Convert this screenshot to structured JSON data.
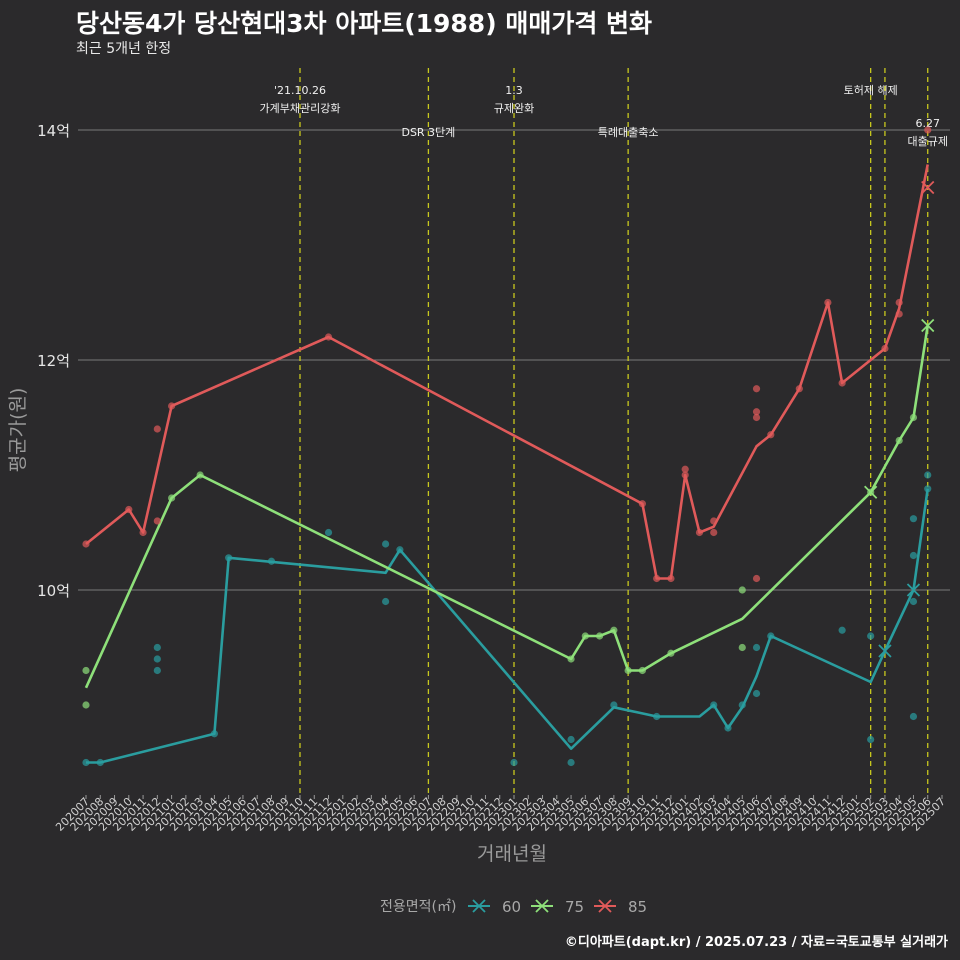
{
  "header": {
    "title": "당산동4가 당산현대3차 아파트(1988) 매매가격 변화",
    "subtitle": "최근 5개년 한정"
  },
  "caption": "©디아파트(dapt.kr) / 2025.07.23 / 자료=국토교통부 실거래가",
  "colors": {
    "background": "#2b2a2c",
    "grid": "#7a7a7a",
    "event_line": "#c8c81e",
    "series_60": "#2a9d9f",
    "series_75": "#8ee07a",
    "series_85": "#e05a5a"
  },
  "chart_data": {
    "type": "line",
    "x_categories": [
      "202007",
      "202008",
      "202009",
      "202010",
      "202011",
      "202012",
      "202101",
      "202102",
      "202103",
      "202104",
      "202105",
      "202106",
      "202107",
      "202108",
      "202109",
      "202110",
      "202111",
      "202112",
      "202201",
      "202202",
      "202203",
      "202204",
      "202205",
      "202206",
      "202207",
      "202208",
      "202209",
      "202210",
      "202211",
      "202212",
      "202301",
      "202302",
      "202303",
      "202304",
      "202305",
      "202306",
      "202307",
      "202308",
      "202309",
      "202310",
      "202311",
      "202312",
      "202401",
      "202402",
      "202403",
      "202404",
      "202405",
      "202406",
      "202407",
      "202408",
      "202409",
      "202410",
      "202411",
      "202412",
      "202501",
      "202502",
      "202503",
      "202504",
      "202505",
      "202506",
      "202507"
    ],
    "xlabel": "거래년월",
    "ylabel": "평균가(원)",
    "y_unit": "억",
    "ylim": [
      8.3,
      14.6
    ],
    "y_ticks": [
      10,
      12,
      14
    ],
    "y_tick_labels": [
      "10억",
      "12억",
      "14억"
    ],
    "legend_title": "전용면적(㎡)",
    "legend_position": "bottom",
    "events": [
      {
        "month": "202110",
        "lines": [
          "'21.10.26",
          "가계부채관리강화"
        ],
        "level": 1
      },
      {
        "month": "202207",
        "lines": [
          "DSR 3단계"
        ],
        "level": 2
      },
      {
        "month": "202301",
        "lines": [
          "1.3",
          "규제완화"
        ],
        "level": 1
      },
      {
        "month": "202309",
        "lines": [
          "특례대출축소"
        ],
        "level": 2
      },
      {
        "month": "202502",
        "lines": [
          "토허제 해제"
        ],
        "level": 1
      },
      {
        "month": "202503",
        "lines": [],
        "level": 1
      },
      {
        "month": "202506",
        "lines": [
          "6.27",
          "대출규제"
        ],
        "level": 3
      }
    ],
    "series": [
      {
        "name": "60",
        "color": "#2a9d9f",
        "line": [
          {
            "x": "202007",
            "y": 8.5
          },
          {
            "x": "202008",
            "y": 8.5
          },
          {
            "x": "202104",
            "y": 8.75
          },
          {
            "x": "202105",
            "y": 10.28
          },
          {
            "x": "202204",
            "y": 10.15
          },
          {
            "x": "202205",
            "y": 10.35
          },
          {
            "x": "202305",
            "y": 8.62
          },
          {
            "x": "202308",
            "y": 8.98
          },
          {
            "x": "202311",
            "y": 8.9
          },
          {
            "x": "202402",
            "y": 8.9
          },
          {
            "x": "202403",
            "y": 9.0
          },
          {
            "x": "202404",
            "y": 8.8
          },
          {
            "x": "202405",
            "y": 8.98
          },
          {
            "x": "202406",
            "y": 9.25
          },
          {
            "x": "202407",
            "y": 9.6
          },
          {
            "x": "202502",
            "y": 9.2
          },
          {
            "x": "202503",
            "y": 9.47
          },
          {
            "x": "202505",
            "y": 10.0
          },
          {
            "x": "202506",
            "y": 10.88
          }
        ],
        "points": [
          {
            "x": "202007",
            "y": 8.5
          },
          {
            "x": "202008",
            "y": 8.5
          },
          {
            "x": "202012",
            "y": 9.5
          },
          {
            "x": "202012",
            "y": 9.4
          },
          {
            "x": "202012",
            "y": 9.3
          },
          {
            "x": "202104",
            "y": 8.75
          },
          {
            "x": "202105",
            "y": 10.28
          },
          {
            "x": "202108",
            "y": 10.25
          },
          {
            "x": "202112",
            "y": 10.5
          },
          {
            "x": "202204",
            "y": 10.4
          },
          {
            "x": "202204",
            "y": 9.9
          },
          {
            "x": "202205",
            "y": 10.35
          },
          {
            "x": "202301",
            "y": 8.5
          },
          {
            "x": "202305",
            "y": 8.7
          },
          {
            "x": "202305",
            "y": 8.5
          },
          {
            "x": "202308",
            "y": 9.0
          },
          {
            "x": "202311",
            "y": 8.9
          },
          {
            "x": "202403",
            "y": 9.0
          },
          {
            "x": "202404",
            "y": 8.8
          },
          {
            "x": "202405",
            "y": 9.0
          },
          {
            "x": "202406",
            "y": 9.1
          },
          {
            "x": "202406",
            "y": 9.5
          },
          {
            "x": "202407",
            "y": 9.6
          },
          {
            "x": "202412",
            "y": 9.65
          },
          {
            "x": "202502",
            "y": 9.6
          },
          {
            "x": "202502",
            "y": 8.7
          },
          {
            "x": "202505",
            "y": 10.62
          },
          {
            "x": "202505",
            "y": 10.3
          },
          {
            "x": "202505",
            "y": 9.9
          },
          {
            "x": "202505",
            "y": 8.9
          },
          {
            "x": "202506",
            "y": 11.0
          },
          {
            "x": "202506",
            "y": 10.88
          }
        ],
        "x_marks": [
          {
            "x": "202503",
            "y": 9.47
          },
          {
            "x": "202505",
            "y": 10.0
          }
        ]
      },
      {
        "name": "75",
        "color": "#8ee07a",
        "line": [
          {
            "x": "202007",
            "y": 9.15
          },
          {
            "x": "202101",
            "y": 10.8
          },
          {
            "x": "202103",
            "y": 11.0
          },
          {
            "x": "202305",
            "y": 9.4
          },
          {
            "x": "202306",
            "y": 9.6
          },
          {
            "x": "202307",
            "y": 9.6
          },
          {
            "x": "202308",
            "y": 9.65
          },
          {
            "x": "202309",
            "y": 9.3
          },
          {
            "x": "202310",
            "y": 9.3
          },
          {
            "x": "202312",
            "y": 9.45
          },
          {
            "x": "202405",
            "y": 9.75
          },
          {
            "x": "202502",
            "y": 10.85
          },
          {
            "x": "202504",
            "y": 11.3
          },
          {
            "x": "202505",
            "y": 11.5
          },
          {
            "x": "202506",
            "y": 12.3
          }
        ],
        "points": [
          {
            "x": "202007",
            "y": 9.3
          },
          {
            "x": "202007",
            "y": 9.0
          },
          {
            "x": "202101",
            "y": 10.8
          },
          {
            "x": "202103",
            "y": 11.0
          },
          {
            "x": "202305",
            "y": 9.4
          },
          {
            "x": "202306",
            "y": 9.6
          },
          {
            "x": "202307",
            "y": 9.6
          },
          {
            "x": "202308",
            "y": 9.65
          },
          {
            "x": "202309",
            "y": 9.3
          },
          {
            "x": "202310",
            "y": 9.3
          },
          {
            "x": "202312",
            "y": 9.45
          },
          {
            "x": "202405",
            "y": 10.0
          },
          {
            "x": "202405",
            "y": 9.5
          },
          {
            "x": "202502",
            "y": 10.85
          },
          {
            "x": "202504",
            "y": 11.3
          },
          {
            "x": "202505",
            "y": 11.5
          }
        ],
        "x_marks": [
          {
            "x": "202502",
            "y": 10.85
          },
          {
            "x": "202506",
            "y": 12.3
          }
        ]
      },
      {
        "name": "85",
        "color": "#e05a5a",
        "line": [
          {
            "x": "202007",
            "y": 10.4
          },
          {
            "x": "202010",
            "y": 10.7
          },
          {
            "x": "202011",
            "y": 10.5
          },
          {
            "x": "202101",
            "y": 11.6
          },
          {
            "x": "202112",
            "y": 12.2
          },
          {
            "x": "202310",
            "y": 10.75
          },
          {
            "x": "202311",
            "y": 10.1
          },
          {
            "x": "202312",
            "y": 10.1
          },
          {
            "x": "202401",
            "y": 11.0
          },
          {
            "x": "202402",
            "y": 10.5
          },
          {
            "x": "202403",
            "y": 10.55
          },
          {
            "x": "202406",
            "y": 11.25
          },
          {
            "x": "202407",
            "y": 11.35
          },
          {
            "x": "202409",
            "y": 11.75
          },
          {
            "x": "202411",
            "y": 12.5
          },
          {
            "x": "202412",
            "y": 11.8
          },
          {
            "x": "202503",
            "y": 12.1
          },
          {
            "x": "202504",
            "y": 12.45
          },
          {
            "x": "202506",
            "y": 13.7
          }
        ],
        "points": [
          {
            "x": "202007",
            "y": 10.4
          },
          {
            "x": "202010",
            "y": 10.7
          },
          {
            "x": "202011",
            "y": 10.5
          },
          {
            "x": "202012",
            "y": 11.4
          },
          {
            "x": "202012",
            "y": 10.6
          },
          {
            "x": "202101",
            "y": 11.6
          },
          {
            "x": "202112",
            "y": 12.2
          },
          {
            "x": "202310",
            "y": 10.75
          },
          {
            "x": "202311",
            "y": 10.1
          },
          {
            "x": "202312",
            "y": 10.1
          },
          {
            "x": "202401",
            "y": 11.05
          },
          {
            "x": "202401",
            "y": 11.0
          },
          {
            "x": "202402",
            "y": 10.5
          },
          {
            "x": "202403",
            "y": 10.6
          },
          {
            "x": "202403",
            "y": 10.5
          },
          {
            "x": "202406",
            "y": 11.75
          },
          {
            "x": "202406",
            "y": 11.55
          },
          {
            "x": "202406",
            "y": 11.5
          },
          {
            "x": "202406",
            "y": 10.1
          },
          {
            "x": "202407",
            "y": 11.35
          },
          {
            "x": "202409",
            "y": 11.75
          },
          {
            "x": "202411",
            "y": 12.5
          },
          {
            "x": "202412",
            "y": 11.8
          },
          {
            "x": "202503",
            "y": 12.1
          },
          {
            "x": "202504",
            "y": 12.5
          },
          {
            "x": "202504",
            "y": 12.4
          },
          {
            "x": "202506",
            "y": 14.0
          }
        ],
        "x_marks": [
          {
            "x": "202506",
            "y": 13.5
          }
        ]
      }
    ]
  }
}
